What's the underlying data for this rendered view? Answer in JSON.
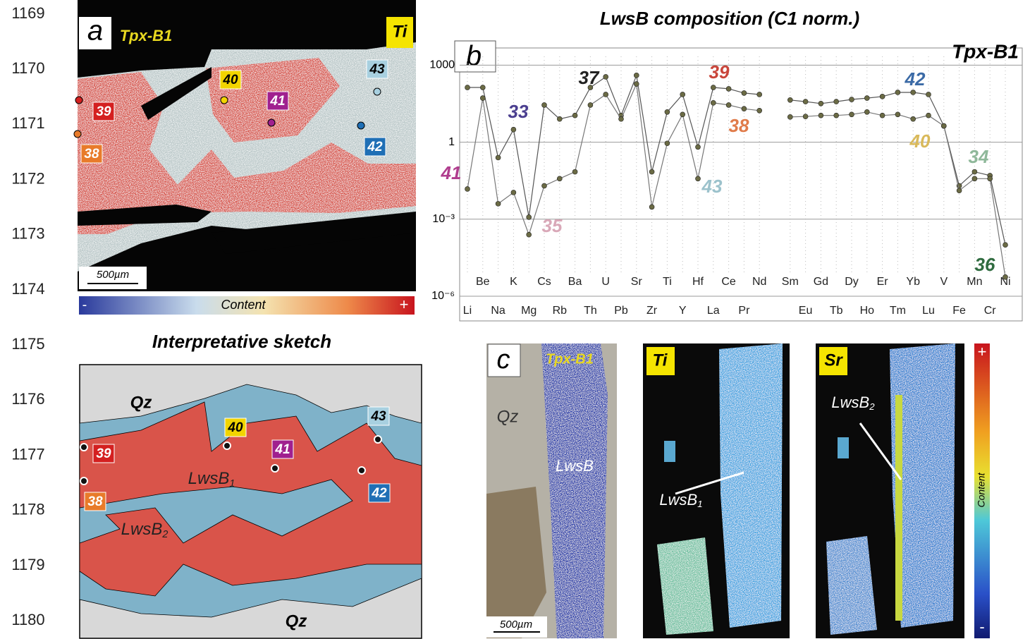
{
  "line_numbers": [
    "1169",
    "1170",
    "1171",
    "1172",
    "1173",
    "1174",
    "1175",
    "1176",
    "1177",
    "1178",
    "1179",
    "1180"
  ],
  "panel_a": {
    "letter": "a",
    "sample": "Tpx-B1",
    "element": "Ti",
    "scale_bar": "500µm",
    "colorbar": {
      "min": "-",
      "label": "Content",
      "max": "+"
    },
    "spots": [
      {
        "label": "40",
        "color": "#f2d400"
      },
      {
        "label": "41",
        "color": "#a0208f"
      },
      {
        "label": "43",
        "color": "#a8d0e0"
      },
      {
        "label": "39",
        "color": "#d42020"
      },
      {
        "label": "42",
        "color": "#1f6fb5"
      },
      {
        "label": "38",
        "color": "#e87b2a"
      }
    ]
  },
  "sketch": {
    "title": "Interpretative sketch",
    "qz_top": "Qz",
    "qz_bottom": "Qz",
    "lwsb1": {
      "text": "LwsB",
      "sub": "1"
    },
    "lwsb2": {
      "text": "LwsB",
      "sub": "2"
    },
    "spots": [
      {
        "label": "40",
        "color": "#f2d400"
      },
      {
        "label": "41",
        "color": "#a0208f"
      },
      {
        "label": "43",
        "color": "#a8d0e0"
      },
      {
        "label": "39",
        "color": "#d42020"
      },
      {
        "label": "42",
        "color": "#1f6fb5"
      },
      {
        "label": "38",
        "color": "#e87b2a"
      }
    ]
  },
  "panel_c": {
    "letter": "c",
    "sample": "Tpx-B1",
    "qz": "Qz",
    "mineral": "LwsB",
    "ti": "Ti",
    "sr": "Sr",
    "lwsb1": {
      "text": "LwsB",
      "sub": "1"
    },
    "lwsb2": {
      "text": "LwsB",
      "sub": "2"
    },
    "scale_bar": "500µm",
    "colorbar": {
      "max": "+",
      "label": "Content",
      "min": "-"
    }
  },
  "chart_data": {
    "type": "line",
    "title": "LwsB composition (C1 norm.)",
    "letter": "b",
    "sample": "Tpx-B1",
    "log_scale": true,
    "grid": true,
    "categories": [
      "Li",
      "Be",
      "Na",
      "K",
      "Mg",
      "Cs",
      "Rb",
      "Ba",
      "Th",
      "U",
      "Pb",
      "Sr",
      "Zr",
      "Ti",
      "Y",
      "Hf",
      "La",
      "Ce",
      "Pr",
      "Nd",
      null,
      "Sm",
      "Eu",
      "Gd",
      "Tb",
      "Dy",
      "Ho",
      "Er",
      "Tm",
      "Yb",
      "Lu",
      "V",
      "Fe",
      "Mn",
      "Cr",
      "Ni"
    ],
    "ylim": [
      1e-06,
      3000
    ],
    "yticks": [
      1000,
      1,
      {
        "value": 0.001,
        "label": "10⁻³"
      },
      {
        "value": 1e-06,
        "label": "10⁻⁶"
      }
    ],
    "series": [
      {
        "color": "#555555",
        "values": [
          135,
          135,
          0.25,
          3.1,
          0.0012,
          28,
          8,
          11,
          135,
          350,
          11,
          400,
          0.07,
          15,
          72,
          0.65,
          135,
          120,
          82,
          72,
          null,
          44,
          38,
          32,
          38,
          46,
          52,
          60,
          87,
          87,
          72,
          4.3,
          0.02,
          0.07,
          0.05,
          0.0001
        ]
      },
      {
        "color": "#777777",
        "values": [
          0.015,
          52,
          0.004,
          0.011,
          0.00025,
          0.02,
          0.038,
          0.07,
          28,
          72,
          8,
          185,
          0.003,
          0.9,
          12,
          0.038,
          34,
          28,
          20,
          17,
          null,
          9.6,
          10,
          11,
          11,
          12,
          15,
          11,
          12,
          8,
          11,
          4.3,
          0.013,
          0.038,
          0.038,
          5.6e-06
        ]
      }
    ],
    "annotations": [
      {
        "text": "41",
        "color": "#b03d8e"
      },
      {
        "text": "33",
        "color": "#4b3f8f"
      },
      {
        "text": "35",
        "color": "#d9a8b8"
      },
      {
        "text": "37",
        "color": "#222222"
      },
      {
        "text": "39",
        "color": "#c9453a"
      },
      {
        "text": "38",
        "color": "#e07b4a"
      },
      {
        "text": "43",
        "color": "#9cc2cc"
      },
      {
        "text": "42",
        "color": "#3b6aa6"
      },
      {
        "text": "40",
        "color": "#d9b95a"
      },
      {
        "text": "34",
        "color": "#8fb89a"
      },
      {
        "text": "36",
        "color": "#2f6b3f"
      }
    ]
  }
}
